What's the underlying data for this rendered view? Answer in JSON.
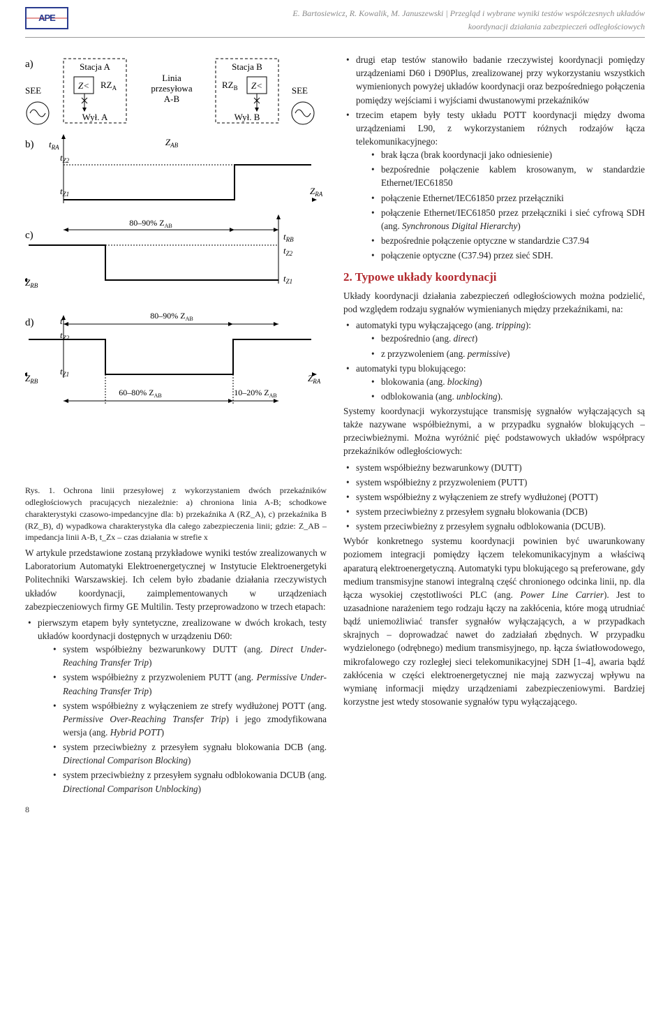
{
  "header": {
    "logo_text": "APE",
    "authors": "E. Bartosiewicz, R. Kowalik, M. Januszewski",
    "title1": " | Przegląd i wybrane wyniki testów współczesnych układów",
    "title2": "koordynacji działania zabezpieczeń odległościowych"
  },
  "page_number": "8",
  "figure": {
    "station_a": "Stacja A",
    "station_b": "Stacja B",
    "linia": "Linia",
    "przesylowa": "przesyłowa",
    "ab": "A-B",
    "rza": "RZ",
    "rzb": "RZ",
    "z_sym": "Z<",
    "wyl_a": "Wył. A",
    "wyl_b": "Wył. B",
    "see": "SEE",
    "zab": "Z",
    "zab_sub": "AB",
    "zra": "Z",
    "zra_sub": "RA",
    "zrb": "Z",
    "zrb_sub": "RB",
    "tra": "t",
    "tra_sub": "RA",
    "trb": "t",
    "trb_sub": "RB",
    "tz1": "t",
    "tz1_sub": "Z1",
    "tz2": "t",
    "tz2_sub": "Z2",
    "t": "t",
    "range_8090": "80–90% Z",
    "range_6080": "60–80% Z",
    "range_1020": "10–20% Z",
    "panel_a": "a)",
    "panel_b": "b)",
    "panel_c": "c)",
    "panel_d": "d)",
    "caption_prefix": "Rys. 1. ",
    "caption": "Ochrona linii przesyłowej z wykorzystaniem dwóch przekaźników odległościowych pracujących niezależnie: a) chroniona linia A-B; schodkowe charakterystyki czasowo-impedancyjne dla: b) przekaźnika A (RZ_A), c) przekaźnika B (RZ_B), d) wypadkowa charakterystyka dla całego zabezpieczenia linii; gdzie: Z_AB – impedancja linii A-B, t_Zx – czas działania w strefie x"
  },
  "left_para": "W artykule przedstawione zostaną przykładowe wyniki testów zrealizowanych w Laboratorium Automatyki Elektroenergetycznej w Instytucie Elektroenergetyki Politechniki Warszawskiej. Ich celem było zbadanie działania rzeczywistych układów koordynacji, zaimplementowanych w urządzeniach zabezpieczeniowych firmy GE Multilin. Testy przeprowadzono w trzech etapach:",
  "left_list": [
    {
      "text": "pierwszym etapem były syntetyczne, zrealizowane w dwóch krokach, testy układów koordynacji dostępnych w urządzeniu D60:",
      "sub": [
        "system współbieżny bezwarunkowy DUTT (ang. <em>Direct Under-Reaching Transfer Trip</em>)",
        "system współbieżny z przyzwoleniem PUTT (ang. <em>Permissive Under-Reaching Transfer Trip</em>)",
        "system współbieżny z wyłączeniem ze strefy wydłużonej POTT (ang. <em>Permissive Over-Reaching Transfer Trip</em>) i jego zmodyfikowana wersja (ang. <em>Hybrid POTT</em>)",
        "system przeciwbieżny z przesyłem sygnału blokowania DCB (ang. <em>Directional Comparison Blocking</em>)",
        "system przeciwbieżny z przesyłem sygnału odblokowania DCUB (ang. <em>Directional Comparison Unblocking</em>)"
      ]
    }
  ],
  "right_list_top": [
    "drugi etap testów stanowiło badanie rzeczywistej koordynacji pomiędzy urządzeniami D60 i D90Plus, zrealizowanej przy wykorzystaniu wszystkich wymienionych powyżej układów koordynacji oraz bezpośredniego połączenia pomiędzy wejściami i wyjściami dwustanowymi przekaźników",
    {
      "text": "trzecim etapem były testy układu POTT koordynacji między dwoma urządzeniami L90, z wykorzystaniem różnych rodzajów łącza telekomunikacyjnego:",
      "sub": [
        "brak łącza (brak koordynacji jako odniesienie)",
        "bezpośrednie połączenie kablem krosowanym, w standardzie Ethernet/IEC61850",
        "połączenie Ethernet/IEC61850 przez przełączniki",
        "połączenie Ethernet/IEC61850 przez przełączniki i sieć cyfrową SDH (ang. <em>Synchronous Digital Hierarchy</em>)",
        "bezpośrednie połączenie optyczne w standardzie C37.94",
        "połączenie optyczne (C37.94) przez sieć SDH."
      ]
    }
  ],
  "section2_title": "2. Typowe układy koordynacji",
  "section2_para": "Układy koordynacji działania zabezpieczeń odległościowych można podzielić, pod względem rodzaju sygnałów wymienianych między przekaźnikami, na:",
  "section2_list": [
    {
      "text": "automatyki typu wyłączającego (ang. <em>tripping</em>):",
      "sub": [
        "bezpośrednio (ang. <em>direct</em>)",
        "z przyzwoleniem (ang. <em>permissive</em>)"
      ]
    },
    {
      "text": "automatyki typu blokującego:",
      "sub": [
        "blokowania (ang. <em>blocking</em>)",
        "odblokowania (ang. <em>unblocking</em>)."
      ]
    }
  ],
  "section2_para2": "Systemy koordynacji wykorzystujące transmisję sygnałów wyłączających są także nazywane współbieżnymi, a w przypadku sygnałów blokujących – przeciwbieżnymi. Można wyróżnić pięć podstawowych układów współpracy przekaźników odległościowych:",
  "section2_list2": [
    "system współbieżny bezwarunkowy (DUTT)",
    "system współbieżny z przyzwoleniem (PUTT)",
    "system współbieżny z wyłączeniem ze strefy wydłużonej (POTT)",
    "system przeciwbieżny z przesyłem sygnału blokowania (DCB)",
    "system przeciwbieżny z przesyłem sygnału odblokowania (DCUB)."
  ],
  "section2_para3": "Wybór konkretnego systemu koordynacji powinien być uwarunkowany poziomem integracji pomiędzy łączem telekomunikacyjnym a właściwą aparaturą elektroenergetyczną. Automatyki typu blokującego są preferowane, gdy medium transmisyjne stanowi integralną część chronionego odcinka linii, np. dla łącza wysokiej częstotliwości PLC (ang. <em>Power Line Carrier</em>). Jest to uzasadnione narażeniem tego rodzaju łączy na zakłócenia, które mogą utrudniać bądź uniemożliwiać transfer sygnałów wyłączających, a w przypadkach skrajnych – doprowadzać nawet do zadziałań zbędnych. W przypadku wydzielonego (odrębnego) medium transmisyjnego, np. łącza światłowodowego, mikrofalowego czy rozległej sieci telekomunikacyjnej SDH [1–4], awaria bądź zakłócenia w części elektroenergetycznej nie mają zazwyczaj wpływu na wymianę informacji między urządzeniami zabezpieczeniowymi. Bardziej korzystne jest wtedy stosowanie sygnałów typu wyłączającego."
}
